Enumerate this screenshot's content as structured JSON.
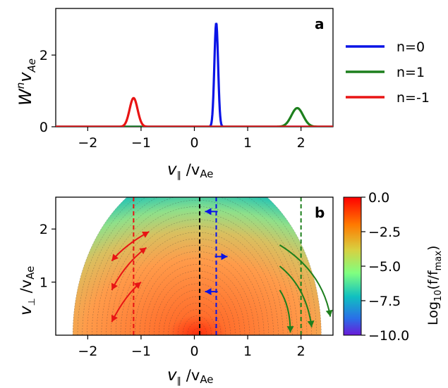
{
  "chart_data": [
    {
      "panel": "a",
      "type": "line",
      "ylabel": "W^n v_Ae",
      "xlabel": "v_∥ / v_Ae",
      "xlim": [
        -2.6,
        2.6
      ],
      "ylim": [
        0,
        3.3
      ],
      "xticks": [
        "−2",
        "−1",
        "0",
        "1",
        "2"
      ],
      "xtick_values": [
        -2,
        -1,
        0,
        1,
        2
      ],
      "yticks": [
        "0",
        "2"
      ],
      "ytick_values": [
        0,
        2
      ],
      "legend_position": "outside-right",
      "series": [
        {
          "name": "n=0",
          "color": "#0a14e6",
          "peak_x": 0.41,
          "peak_y": 2.9,
          "width": 0.035
        },
        {
          "name": "n=1",
          "color": "#1d7f1d",
          "peak_x": 1.93,
          "peak_y": 0.52,
          "width": 0.11
        },
        {
          "name": "n=-1",
          "color": "#e81414",
          "peak_x": -1.14,
          "peak_y": 0.8,
          "width": 0.075
        }
      ]
    },
    {
      "panel": "b",
      "type": "heatmap",
      "xlabel": "v_∥ / v_Ae",
      "ylabel": "v_⊥ / v_Ae",
      "xlim": [
        -2.6,
        2.6
      ],
      "ylim": [
        0,
        2.6
      ],
      "xticks": [
        "−2",
        "−1",
        "0",
        "1",
        "2"
      ],
      "xtick_values": [
        -2,
        -1,
        0,
        1,
        2
      ],
      "yticks": [
        "1",
        "2"
      ],
      "ytick_values": [
        1,
        2
      ],
      "colorbar": {
        "label": "Log10(f/fmax)",
        "range": [
          -10.0,
          0.0
        ],
        "ticks": [
          "0.0",
          "−2.5",
          "−5.0",
          "−7.5",
          "−10.0"
        ],
        "tick_values": [
          0,
          -2.5,
          -5.0,
          -7.5,
          -10.0
        ]
      },
      "resonance_lines": [
        {
          "n": -1,
          "x": -1.14,
          "color": "#e81414"
        },
        {
          "n": 0,
          "x": 0.41,
          "color": "#0a14e6"
        },
        {
          "n": 0,
          "x": 0.1,
          "color": "#000000"
        },
        {
          "n": 1,
          "x": 2.0,
          "color": "#1d7f1d"
        }
      ]
    }
  ],
  "text": {
    "panel_a_label": "a",
    "panel_b_label": "b",
    "ya_main": "W",
    "ya_sup": "n",
    "ya_sub": "v",
    "ya_sub2": "Ae",
    "x_v": "v",
    "x_par": "∥",
    "x_slash": " /v",
    "x_ae": "Ae",
    "yb_v": "v",
    "yb_perp": "⊥",
    "yb_slash": " /v",
    "yb_ae": "Ae",
    "cb_log": "Log",
    "cb_10": "10",
    "cb_f": "(f/f",
    "cb_max": "max",
    "cb_close": ")"
  }
}
